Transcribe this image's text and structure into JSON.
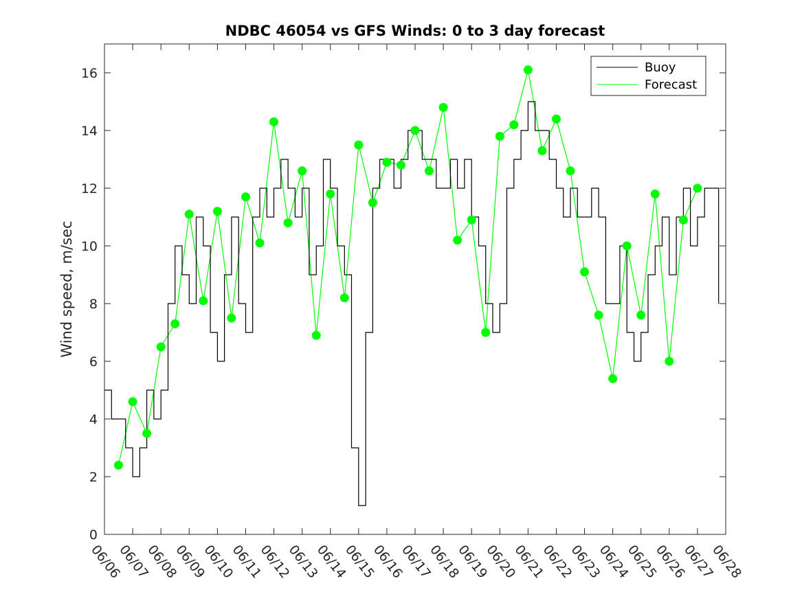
{
  "chart_data": {
    "type": "line",
    "title": "NDBC 46054 vs GFS Winds: 0 to 3 day forecast",
    "xlabel": "",
    "ylabel": "Wind speed, m/sec",
    "xlim": [
      "06/06",
      "06/28"
    ],
    "ylim": [
      0,
      17
    ],
    "x_tick_labels": [
      "06/06",
      "06/07",
      "06/08",
      "06/09",
      "06/10",
      "06/11",
      "06/12",
      "06/13",
      "06/14",
      "06/15",
      "06/16",
      "06/17",
      "06/18",
      "06/19",
      "06/20",
      "06/21",
      "06/22",
      "06/23",
      "06/24",
      "06/25",
      "06/26",
      "06/27",
      "06/28"
    ],
    "y_tick_labels": [
      "0",
      "2",
      "4",
      "6",
      "8",
      "10",
      "12",
      "14",
      "16"
    ],
    "grid": false,
    "legend_position": "top-right",
    "colors": {
      "buoy": "#000000",
      "forecast": "#00ff00"
    },
    "series": [
      {
        "name": "Buoy",
        "x": [
          "06/06 00:00",
          "06/06 06:00",
          "06/06 12:00",
          "06/06 18:00",
          "06/07 00:00",
          "06/07 06:00",
          "06/07 12:00",
          "06/07 18:00",
          "06/08 00:00",
          "06/08 06:00",
          "06/08 12:00",
          "06/08 18:00",
          "06/09 00:00",
          "06/09 06:00",
          "06/09 12:00",
          "06/09 18:00",
          "06/10 00:00",
          "06/10 06:00",
          "06/10 12:00",
          "06/10 18:00",
          "06/11 00:00",
          "06/11 06:00",
          "06/11 12:00",
          "06/11 18:00",
          "06/12 00:00",
          "06/12 06:00",
          "06/12 12:00",
          "06/12 18:00",
          "06/13 00:00",
          "06/13 06:00",
          "06/13 12:00",
          "06/13 18:00",
          "06/14 00:00",
          "06/14 06:00",
          "06/14 12:00",
          "06/14 18:00",
          "06/15 00:00",
          "06/15 06:00",
          "06/15 12:00",
          "06/15 18:00",
          "06/16 00:00",
          "06/16 06:00",
          "06/16 12:00",
          "06/16 18:00",
          "06/17 00:00",
          "06/17 06:00",
          "06/17 12:00",
          "06/17 18:00",
          "06/18 00:00",
          "06/18 06:00",
          "06/18 12:00",
          "06/18 18:00",
          "06/19 00:00",
          "06/19 06:00",
          "06/19 12:00",
          "06/19 18:00",
          "06/20 00:00",
          "06/20 06:00",
          "06/20 12:00",
          "06/20 18:00",
          "06/21 00:00",
          "06/21 06:00",
          "06/21 12:00",
          "06/21 18:00",
          "06/22 00:00",
          "06/22 06:00",
          "06/22 12:00",
          "06/22 18:00",
          "06/23 00:00",
          "06/23 06:00",
          "06/23 12:00",
          "06/23 18:00",
          "06/24 00:00",
          "06/24 06:00",
          "06/24 12:00",
          "06/24 18:00",
          "06/25 00:00",
          "06/25 06:00",
          "06/25 12:00",
          "06/25 18:00",
          "06/26 00:00",
          "06/26 06:00",
          "06/26 12:00",
          "06/26 18:00",
          "06/27 00:00",
          "06/27 06:00",
          "06/27 12:00",
          "06/27 18:00"
        ],
        "values": [
          5,
          4,
          4,
          3,
          2,
          3,
          5,
          4,
          5,
          8,
          10,
          9,
          8,
          11,
          10,
          7,
          6,
          9,
          11,
          8,
          7,
          11,
          12,
          11,
          12,
          13,
          12,
          11,
          12,
          9,
          10,
          13,
          12,
          10,
          9,
          3,
          1,
          7,
          12,
          13,
          13,
          12,
          13,
          14,
          14,
          13,
          13,
          12,
          12,
          13,
          12,
          13,
          11,
          10,
          8,
          7,
          8,
          12,
          13,
          14,
          15,
          14,
          14,
          13,
          12,
          11,
          12,
          11,
          11,
          12,
          11,
          8,
          8,
          10,
          7,
          6,
          7,
          9,
          10,
          11,
          9,
          11,
          12,
          10,
          11,
          12,
          12,
          8
        ]
      },
      {
        "name": "Forecast",
        "x": [
          "06/06 12:00",
          "06/07 00:00",
          "06/07 12:00",
          "06/08 00:00",
          "06/08 12:00",
          "06/09 00:00",
          "06/09 12:00",
          "06/10 00:00",
          "06/10 12:00",
          "06/11 00:00",
          "06/11 12:00",
          "06/12 00:00",
          "06/12 12:00",
          "06/13 00:00",
          "06/13 12:00",
          "06/14 00:00",
          "06/14 12:00",
          "06/15 00:00",
          "06/15 12:00",
          "06/16 00:00",
          "06/16 12:00",
          "06/17 00:00",
          "06/17 12:00",
          "06/18 00:00",
          "06/18 12:00",
          "06/19 00:00",
          "06/19 12:00",
          "06/20 00:00",
          "06/20 12:00",
          "06/21 00:00",
          "06/21 12:00",
          "06/22 00:00",
          "06/22 12:00",
          "06/23 00:00",
          "06/23 12:00",
          "06/24 00:00",
          "06/24 12:00",
          "06/25 00:00",
          "06/25 12:00",
          "06/26 00:00",
          "06/26 12:00",
          "06/27 00:00"
        ],
        "values": [
          2.4,
          4.6,
          3.5,
          6.5,
          7.3,
          11.1,
          8.1,
          11.2,
          7.5,
          11.7,
          10.1,
          14.3,
          10.8,
          12.6,
          6.9,
          11.8,
          8.2,
          13.5,
          11.5,
          12.9,
          12.8,
          14.0,
          12.6,
          14.8,
          10.2,
          10.9,
          7.0,
          13.8,
          14.2,
          16.1,
          13.3,
          14.4,
          12.6,
          9.1,
          7.6,
          5.4,
          10.0,
          7.6,
          11.8,
          6.0,
          10.9,
          12.0
        ]
      }
    ]
  }
}
